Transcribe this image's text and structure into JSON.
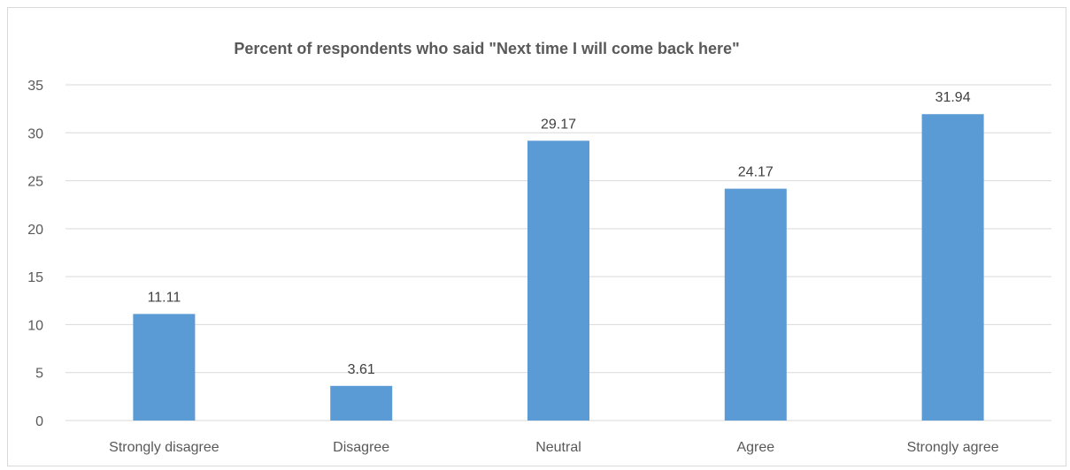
{
  "chart_data": {
    "type": "bar",
    "title": "Percent of respondents who said \"Next time I will come back here\"",
    "xlabel": "",
    "ylabel": "",
    "categories": [
      "Strongly disagree",
      "Disagree",
      "Neutral",
      "Agree",
      "Strongly agree"
    ],
    "values": [
      11.11,
      3.61,
      29.17,
      24.17,
      31.94
    ],
    "data_labels": [
      "11.11",
      "3.61",
      "29.17",
      "24.17",
      "31.94"
    ],
    "ylim": [
      0,
      35
    ],
    "y_ticks": [
      "0",
      "5",
      "10",
      "15",
      "20",
      "25",
      "30",
      "35"
    ],
    "grid": true,
    "legend": "none",
    "bar_color": "#5b9bd5",
    "gridline_color": "#d9d9d9"
  }
}
